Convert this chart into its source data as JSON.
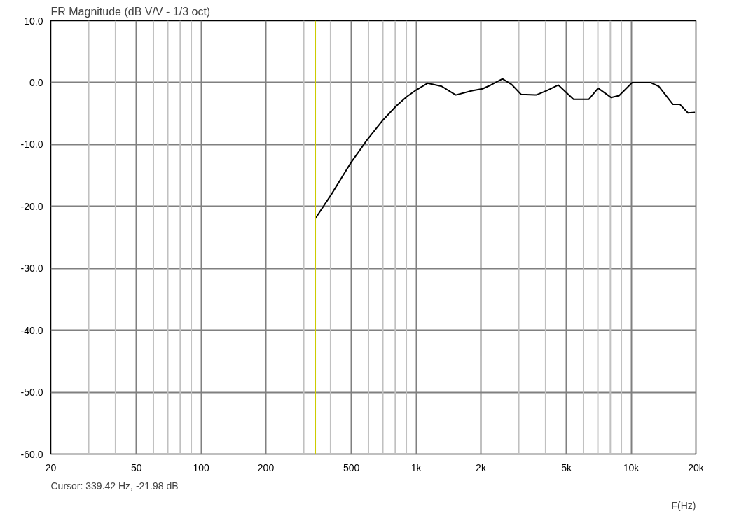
{
  "chart_data": {
    "type": "line",
    "title": "FR Magnitude (dB V/V - 1/3 oct)",
    "xlabel": "F(Hz)",
    "log": "x",
    "grid": true,
    "annotations": [
      "Cursor: 339.42 Hz, -21.98 dB"
    ],
    "ref_lines": [
      {
        "axis": "x",
        "value": 339.42,
        "color": "#cccc00"
      }
    ],
    "xlim": [
      20,
      20000
    ],
    "ylim": [
      -60,
      10
    ],
    "xticks": [
      20,
      {
        "value": 30,
        "label": null
      },
      {
        "value": 40,
        "label": null
      },
      50,
      {
        "value": 60,
        "label": null
      },
      {
        "value": 70,
        "label": null
      },
      {
        "value": 80,
        "label": null
      },
      {
        "value": 90,
        "label": null
      },
      100,
      200,
      {
        "value": 300,
        "label": null
      },
      {
        "value": 400,
        "label": null
      },
      500,
      {
        "value": 600,
        "label": null
      },
      {
        "value": 700,
        "label": null
      },
      {
        "value": 800,
        "label": null
      },
      {
        "value": 900,
        "label": null
      },
      {
        "value": 1000,
        "label": "1k"
      },
      {
        "value": 2000,
        "label": "2k"
      },
      {
        "value": 3000,
        "label": null
      },
      {
        "value": 4000,
        "label": null
      },
      {
        "value": 5000,
        "label": "5k"
      },
      {
        "value": 6000,
        "label": null
      },
      {
        "value": 7000,
        "label": null
      },
      {
        "value": 8000,
        "label": null
      },
      {
        "value": 9000,
        "label": null
      },
      {
        "value": 10000,
        "label": "10k"
      },
      {
        "value": 20000,
        "label": "20k"
      }
    ],
    "yticks": [
      {
        "value": 10,
        "label": "10.0"
      },
      {
        "value": 0,
        "label": "0.0"
      },
      {
        "value": -10,
        "label": "-10.0"
      },
      {
        "value": -20,
        "label": "-20.0"
      },
      {
        "value": -30,
        "label": "-30.0"
      },
      {
        "value": -40,
        "label": "-40.0"
      },
      {
        "value": -50,
        "label": "-50.0"
      },
      {
        "value": -60,
        "label": "-60.0"
      }
    ],
    "x": [
      339.42,
      401,
      496,
      590,
      703,
      807,
      903,
      1000,
      1130,
      1315,
      1528,
      1820,
      2037,
      2223,
      2520,
      2780,
      3075,
      3615,
      4050,
      4585,
      5390,
      6350,
      7020,
      8060,
      8790,
      10100,
      12300,
      13430,
      15620,
      16830,
      18370,
      19800
    ],
    "series": [
      {
        "color": "#000000",
        "values": [
          -21.98,
          -18.2,
          -13.0,
          -9.3,
          -6.0,
          -3.8,
          -2.3,
          -1.2,
          -0.1,
          -0.6,
          -2.0,
          -1.3,
          -1.0,
          -0.4,
          0.6,
          -0.3,
          -1.9,
          -2.0,
          -1.3,
          -0.4,
          -2.7,
          -2.7,
          -0.9,
          -2.4,
          -2.1,
          0.0,
          0.0,
          -0.6,
          -3.5,
          -3.5,
          -4.9,
          -4.8
        ]
      }
    ]
  }
}
